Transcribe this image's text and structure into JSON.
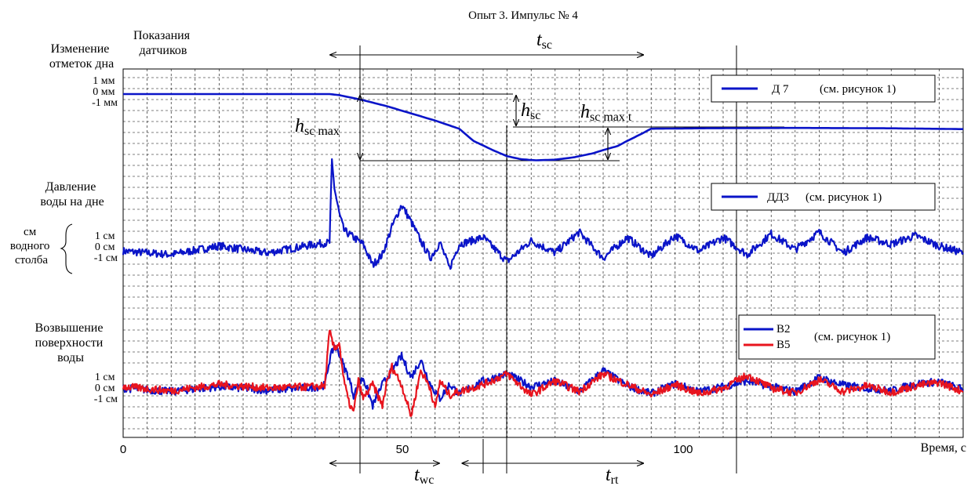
{
  "chart_data": {
    "type": "line",
    "title": "Опыт 3. Импульс № 4",
    "xlabel": "Время, с",
    "x_ticks": [
      "0",
      "50",
      "100"
    ],
    "xlim": [
      0,
      175
    ],
    "grid": true,
    "panels": [
      {
        "id": "bottom_change",
        "label_lines": [
          "Изменение",
          "отметок дна"
        ],
        "scale_labels": [
          "1 мм",
          "0 мм",
          "-1 мм"
        ],
        "legend": "Д 7",
        "legend_ref": "(см. рисунок 1)",
        "series": [
          {
            "name": "Д 7",
            "color": "#0a14c8",
            "x": [
              0,
              20,
              43,
              45,
              50,
              55,
              60,
              65,
              70,
              73,
              77,
              80,
              83,
              86,
              90,
              94,
              98,
              100,
              103,
              105,
              108,
              110,
              120,
              140,
              160,
              175
            ],
            "y": [
              0,
              0,
              0,
              -0.05,
              -0.3,
              -0.6,
              -0.95,
              -1.3,
              -1.7,
              -2.3,
              -2.75,
              -3.05,
              -3.2,
              -3.25,
              -3.22,
              -3.1,
              -2.9,
              -2.75,
              -2.55,
              -2.3,
              -1.95,
              -1.7,
              -1.68,
              -1.66,
              -1.68,
              -1.72
            ]
          }
        ]
      },
      {
        "id": "pressure",
        "label_lines": [
          "Давление",
          "воды на дне"
        ],
        "unit_lines": [
          "см",
          "водного",
          "столба"
        ],
        "scale_labels": [
          "1 см",
          "0 см",
          "-1 см"
        ],
        "legend": "ДД3",
        "legend_ref": "(см. рисунок 1)",
        "series": [
          {
            "name": "ДД3",
            "color": "#0a14c8",
            "x": [
              0,
              10,
              20,
              30,
              40,
              43,
              43.5,
              44,
              45,
              46,
              48,
              50,
              52,
              54,
              56,
              58,
              60,
              62,
              64,
              66,
              68,
              70,
              75,
              80,
              85,
              90,
              95,
              100,
              105,
              110,
              115,
              120,
              125,
              130,
              135,
              140,
              145,
              150,
              155,
              160,
              165,
              170,
              175
            ],
            "y": [
              -0.2,
              -0.4,
              0.1,
              -0.3,
              0.2,
              0.3,
              5.0,
              3.5,
              2.0,
              1.0,
              0.6,
              0.2,
              -1.0,
              -0.4,
              1.2,
              2.5,
              1.5,
              0.4,
              -0.6,
              0.3,
              -1.2,
              0.2,
              0.6,
              -0.8,
              0.4,
              -0.3,
              0.9,
              -0.6,
              0.6,
              -0.5,
              0.7,
              -0.2,
              0.6,
              -0.4,
              0.8,
              -0.1,
              0.9,
              -0.3,
              0.6,
              0.2,
              0.7,
              0.1,
              -0.3
            ]
          }
        ]
      },
      {
        "id": "surface",
        "label_lines": [
          "Возвышение",
          "поверхности",
          "воды"
        ],
        "scale_labels": [
          "1 см",
          "0 см",
          "-1 см"
        ],
        "legend_ref": "(см. рисунок 1)",
        "series": [
          {
            "name": "В2",
            "color": "#0a14c8",
            "x": [
              0,
              10,
              20,
              30,
              40,
              42,
              43,
              44,
              45,
              46,
              47,
              48,
              50,
              52,
              54,
              56,
              58,
              60,
              62,
              64,
              66,
              68,
              70,
              75,
              80,
              85,
              90,
              95,
              100,
              105,
              110,
              115,
              120,
              125,
              130,
              135,
              140,
              145,
              150,
              155,
              160,
              165,
              170,
              175
            ],
            "y": [
              0,
              -0.5,
              0.2,
              -0.3,
              0.1,
              0.4,
              4.0,
              6.0,
              5.0,
              3.0,
              1.5,
              -1.0,
              1.5,
              -2.5,
              0.5,
              2.5,
              4.5,
              1.5,
              4.0,
              0.5,
              -1.5,
              0.5,
              -0.8,
              1.0,
              2.0,
              0.2,
              1.0,
              -0.5,
              2.5,
              0.3,
              -0.8,
              0.6,
              -0.5,
              0.2,
              1.0,
              0.2,
              -0.5,
              1.5,
              0.4,
              0.0,
              -0.4,
              0.6,
              0.9,
              -0.2
            ]
          },
          {
            "name": "В5",
            "color": "#e8141e",
            "x": [
              0,
              10,
              20,
              30,
              40,
              42,
              43,
              44,
              45,
              46,
              47,
              48,
              49,
              50,
              52,
              54,
              55,
              56,
              58,
              60,
              62,
              64,
              65,
              66,
              68,
              70,
              75,
              80,
              85,
              90,
              95,
              100,
              105,
              110,
              115,
              120,
              125,
              130,
              135,
              140,
              145,
              150,
              155,
              160,
              165,
              170,
              175
            ],
            "y": [
              0.2,
              -0.4,
              0.5,
              0.0,
              0.2,
              0.3,
              8.0,
              5.5,
              6.5,
              1.0,
              -2.0,
              -3.5,
              1.0,
              -1.5,
              0.5,
              -2.5,
              1.0,
              3.0,
              0.5,
              -4.0,
              2.5,
              0.0,
              -3.0,
              1.0,
              -1.0,
              -0.5,
              0.5,
              2.0,
              -1.0,
              1.0,
              -0.5,
              2.0,
              0.5,
              -1.0,
              0.5,
              -0.8,
              0.0,
              1.8,
              0.0,
              -0.7,
              1.2,
              -0.5,
              0.3,
              -0.6,
              0.3,
              0.8,
              -0.5
            ]
          }
        ]
      }
    ],
    "annotations": [
      {
        "id": "t_sc",
        "base": "t",
        "sub": "sc",
        "from": 43,
        "to": 108.5
      },
      {
        "id": "h_sc",
        "base": "h",
        "sub": "sc",
        "at_x": 71
      },
      {
        "id": "h_sc_max_t",
        "base": "h",
        "sub": "sc max t",
        "at_x": 89
      },
      {
        "id": "h_sc_max",
        "base": "h",
        "sub": "sc max",
        "at_x": 43
      },
      {
        "id": "t_wc",
        "base": "t",
        "sub": "wc",
        "from": 43,
        "to": 66
      },
      {
        "id": "t_rt",
        "base": "t",
        "sub": "rt",
        "from": 70.5,
        "to": 108.5
      }
    ]
  },
  "header": {
    "sensors_label_lines": [
      "Показания",
      "датчиков"
    ]
  }
}
